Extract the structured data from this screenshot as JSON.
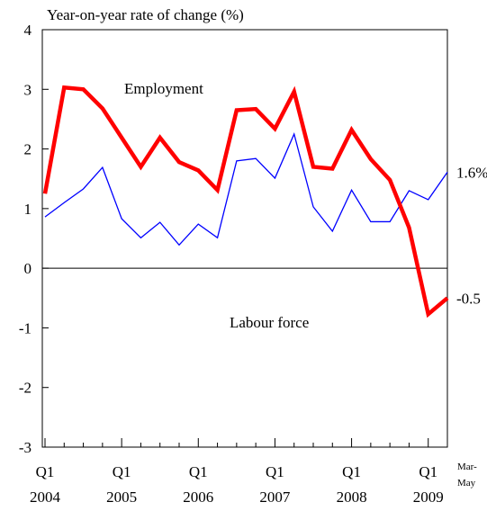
{
  "chart_data": {
    "type": "line",
    "title": "Year-on-year rate of change (%)",
    "annotations": [
      "Employment",
      "Labour force"
    ],
    "categories": [
      "Q1",
      null,
      null,
      null,
      "Q1",
      null,
      null,
      null,
      "Q1",
      null,
      null,
      null,
      "Q1",
      null,
      null,
      null,
      "Q1",
      null,
      null,
      null,
      "Q1",
      "Mar-"
    ],
    "category_years": [
      "2004",
      null,
      null,
      null,
      "2005",
      null,
      null,
      null,
      "2006",
      null,
      null,
      null,
      "2007",
      null,
      null,
      null,
      "2008",
      null,
      null,
      null,
      "2009",
      "May"
    ],
    "series": [
      {
        "name": "Employment",
        "color": "#ff0000",
        "width": 4.5,
        "end_label": "-0.5",
        "values": [
          1.25,
          3.03,
          3.0,
          2.68,
          2.19,
          1.7,
          2.19,
          1.78,
          1.64,
          1.31,
          2.65,
          2.67,
          2.34,
          2.96,
          1.7,
          1.67,
          2.32,
          1.83,
          1.48,
          0.68,
          -0.77,
          -0.5
        ]
      },
      {
        "name": "Labour force",
        "color": "#0000ff",
        "width": 1.3,
        "end_label": "1.6%",
        "values": [
          0.86,
          1.1,
          1.33,
          1.69,
          0.83,
          0.51,
          0.77,
          0.39,
          0.74,
          0.51,
          1.8,
          1.84,
          1.51,
          2.25,
          1.03,
          0.62,
          1.31,
          0.78,
          0.78,
          1.3,
          1.15,
          1.61
        ]
      }
    ],
    "ylim": [
      -3,
      4
    ],
    "yticks": [
      -3,
      -2,
      -1,
      0,
      1,
      2,
      3,
      4
    ]
  }
}
